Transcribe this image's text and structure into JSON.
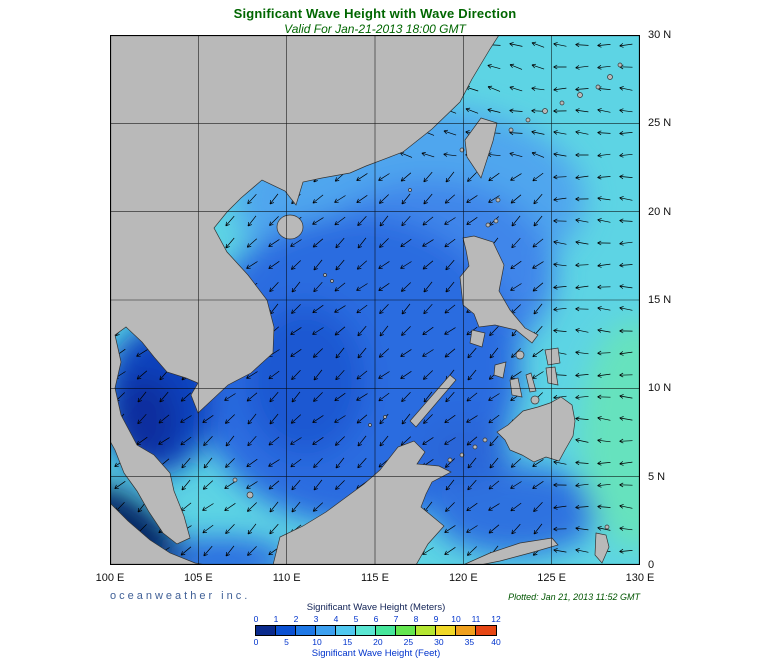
{
  "header": {
    "title": "Significant Wave Height with Wave Direction",
    "subtitle": "Valid For Jan-21-2013 18:00 GMT"
  },
  "footer": {
    "credit": "oceanweather inc.",
    "plotted": "Plotted: Jan 21, 2013 11:52 GMT"
  },
  "map": {
    "lat_ticks": [
      "30 N",
      "25 N",
      "20 N",
      "15 N",
      "10 N",
      "5 N",
      "0"
    ],
    "lon_ticks": [
      "100 E",
      "105 E",
      "110 E",
      "115 E",
      "120 E",
      "125 E",
      "130 E"
    ],
    "lon_range": "100E to 130E",
    "lat_range": "0N to 30N",
    "land_color": "#b9b9b9",
    "coast_color": "#333333",
    "sea_colors": {
      "pacific": "#5dd4e4",
      "north_scs": "#4fa6ee",
      "scs": "#2a6ce0",
      "scs_mid": "#3f86ea",
      "scs_dark": "#1d58d2",
      "gulf_thailand": "#1143be",
      "gulf_dark": "#0b2f9e",
      "malacca": "#051a5e",
      "east_green": "#66e2be",
      "sulu": "#2a66d8",
      "celebes": "#2f72e0",
      "java": "#2a6ce0"
    },
    "arrows": {
      "spacing": 22,
      "length": 13,
      "color": "#000000",
      "angle_scs": 138,
      "angle_pacific": 182,
      "angle_north": 192,
      "wiggle": 10
    }
  },
  "legend": {
    "meters_label": "Significant Wave Height (Meters)",
    "feet_label": "Significant Wave Height (Feet)",
    "meters_ticks": [
      "0",
      "1",
      "2",
      "3",
      "4",
      "5",
      "6",
      "7",
      "8",
      "9",
      "10",
      "11",
      "12"
    ],
    "feet_ticks": [
      "0",
      "5",
      "10",
      "15",
      "20",
      "25",
      "30",
      "35",
      "40"
    ],
    "colors": [
      "#0a2a8c",
      "#0a50d2",
      "#1e78e6",
      "#3ca0f0",
      "#50c8f0",
      "#5ae6d2",
      "#46e69b",
      "#64e650",
      "#b4e632",
      "#f0d828",
      "#f0a01e",
      "#e64614"
    ]
  }
}
